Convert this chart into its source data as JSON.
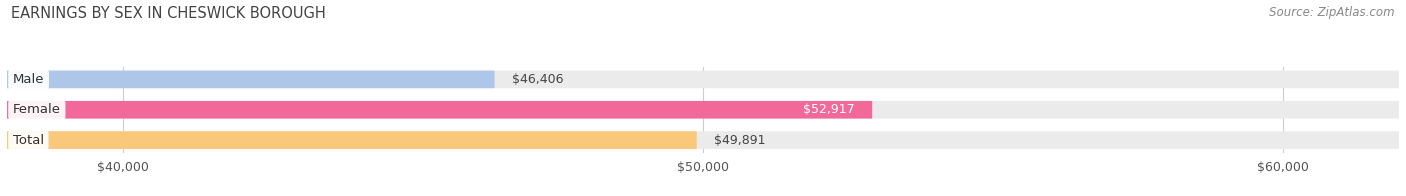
{
  "title": "EARNINGS BY SEX IN CHESWICK BOROUGH",
  "source": "Source: ZipAtlas.com",
  "categories": [
    "Male",
    "Female",
    "Total"
  ],
  "values": [
    46406,
    52917,
    49891
  ],
  "bar_colors": [
    "#aec6e8",
    "#f26899",
    "#f9c87a"
  ],
  "label_colors": [
    "#444444",
    "#ffffff",
    "#444444"
  ],
  "bar_labels": [
    "$46,406",
    "$52,917",
    "$49,891"
  ],
  "xlim_min": 38000,
  "xlim_max": 62000,
  "xticks": [
    40000,
    50000,
    60000
  ],
  "xtick_labels": [
    "$40,000",
    "$50,000",
    "$60,000"
  ],
  "background_color": "#ffffff",
  "bar_bg_color": "#ebebeb",
  "title_fontsize": 10.5,
  "source_fontsize": 8.5,
  "tick_fontsize": 9,
  "label_fontsize": 9,
  "category_fontsize": 9.5,
  "bar_height": 0.58,
  "bar_gap": 1.0
}
